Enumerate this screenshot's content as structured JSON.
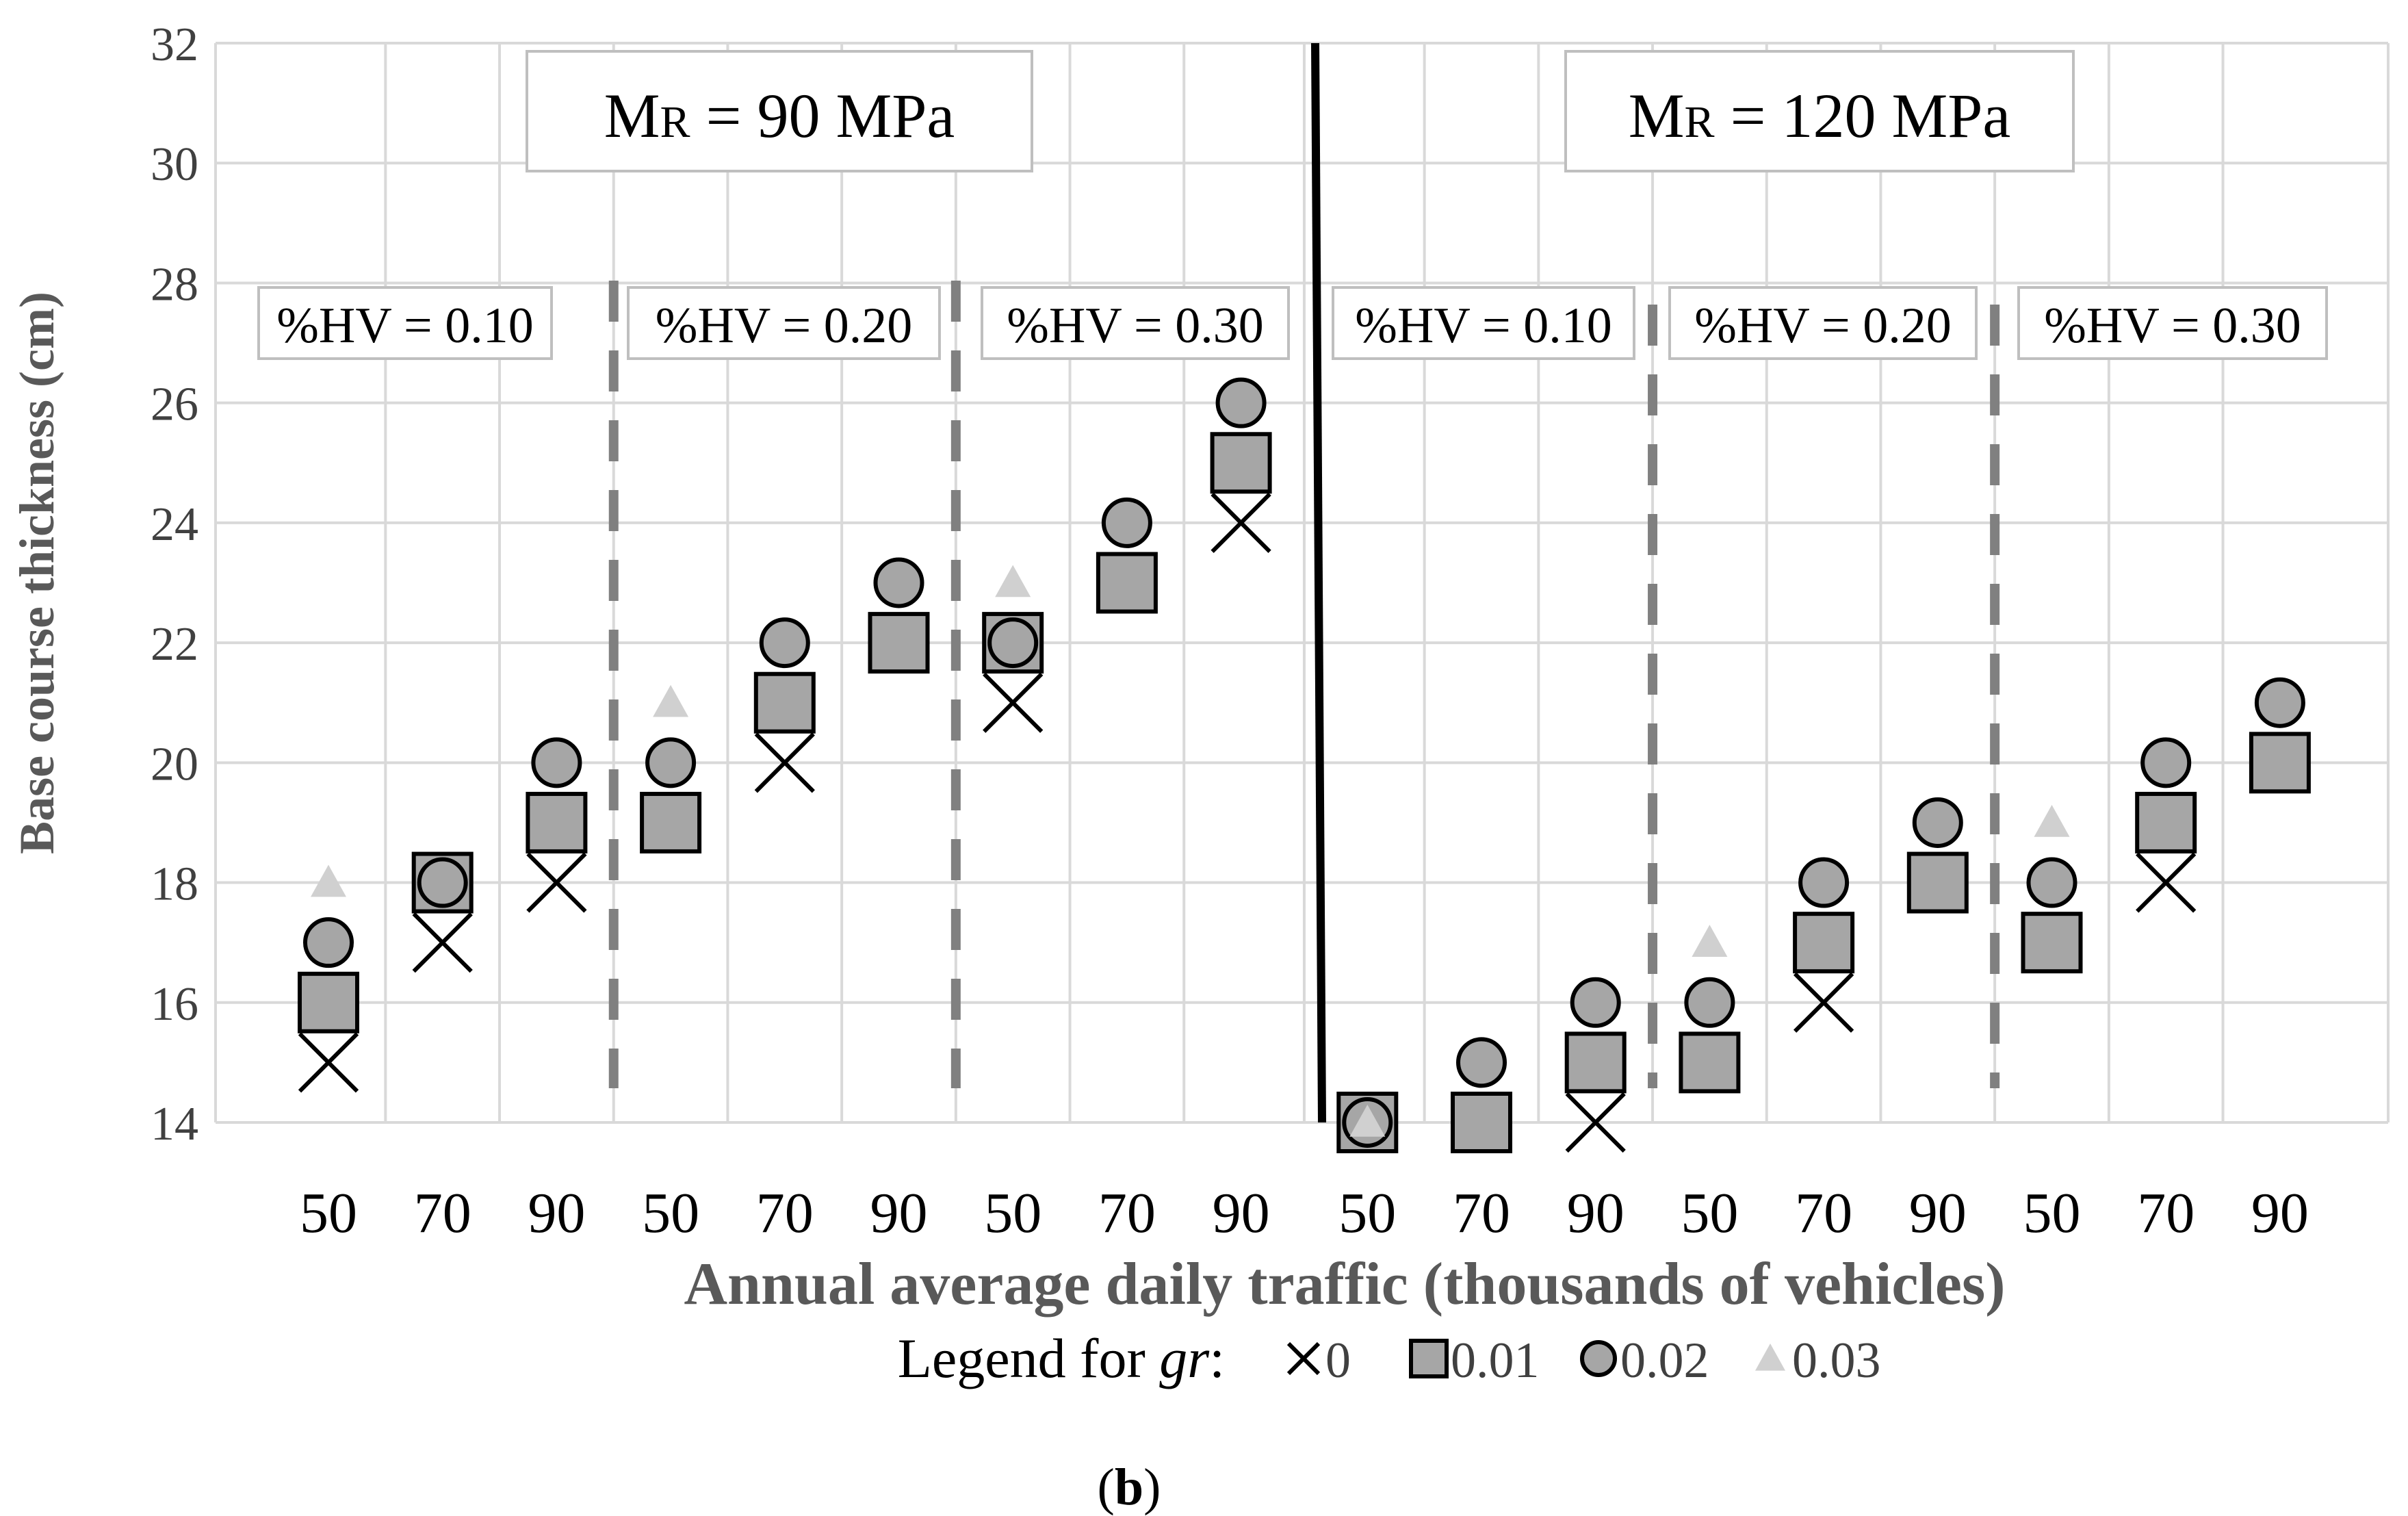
{
  "figure_label": {
    "open": "(",
    "letter": "b",
    "close": ")"
  },
  "chart_data": {
    "type": "scatter",
    "ylabel": "Base course thickness (cm)",
    "xlabel": "Annual average daily traffic (thousands of vehicles)",
    "ylim": [
      14,
      32
    ],
    "yticks": [
      14,
      16,
      18,
      20,
      22,
      24,
      26,
      28,
      30,
      32
    ],
    "grid": true,
    "legend": {
      "title_prefix": "Legend for ",
      "title_var": "gr",
      "title_suffix": ":",
      "entries": [
        {
          "label": "0",
          "marker": "x"
        },
        {
          "label": "0.01",
          "marker": "square"
        },
        {
          "label": "0.02",
          "marker": "circle"
        },
        {
          "label": "0.03",
          "marker": "triangle"
        }
      ]
    },
    "colors": {
      "square": "#a6a6a6",
      "circle": "#a6a6a6",
      "triangle": "#d0d0d0",
      "x": "#000000",
      "grid": "#d9d9d9",
      "axis_text": "#404040",
      "title_text": "#595959",
      "hv_divider": "#808080"
    },
    "panels": [
      {
        "mr_prefix": "M",
        "mr_sub": "R",
        "mr_suffix": " = 90 MPa"
      },
      {
        "mr_prefix": "M",
        "mr_sub": "R",
        "mr_suffix": " = 120 MPa"
      }
    ],
    "hv_labels": [
      "%HV = 0.10",
      "%HV = 0.20",
      "%HV = 0.30",
      "%HV = 0.10",
      "%HV = 0.20",
      "%HV = 0.30"
    ],
    "categories": [
      "50",
      "70",
      "90",
      "50",
      "70",
      "90",
      "50",
      "70",
      "90",
      "50",
      "70",
      "90",
      "50",
      "70",
      "90",
      "50",
      "70",
      "90"
    ],
    "series": [
      {
        "name": "0",
        "marker": "x",
        "values": [
          15,
          17,
          18,
          19,
          20,
          22,
          21,
          23,
          24,
          14,
          14,
          14,
          15,
          16,
          18,
          17,
          18,
          20
        ]
      },
      {
        "name": "0.01",
        "marker": "square",
        "values": [
          16,
          18,
          19,
          19,
          21,
          22,
          22,
          23,
          25,
          14,
          14,
          15,
          15,
          17,
          18,
          17,
          19,
          20
        ]
      },
      {
        "name": "0.02",
        "marker": "circle",
        "values": [
          17,
          18,
          20,
          20,
          22,
          23,
          22,
          24,
          26,
          14,
          15,
          16,
          16,
          18,
          19,
          18,
          20,
          21
        ]
      },
      {
        "name": "0.03",
        "marker": "triangle",
        "values": [
          18,
          null,
          null,
          21,
          null,
          null,
          23,
          null,
          null,
          14,
          null,
          null,
          17,
          null,
          null,
          19,
          null,
          null
        ]
      }
    ]
  }
}
